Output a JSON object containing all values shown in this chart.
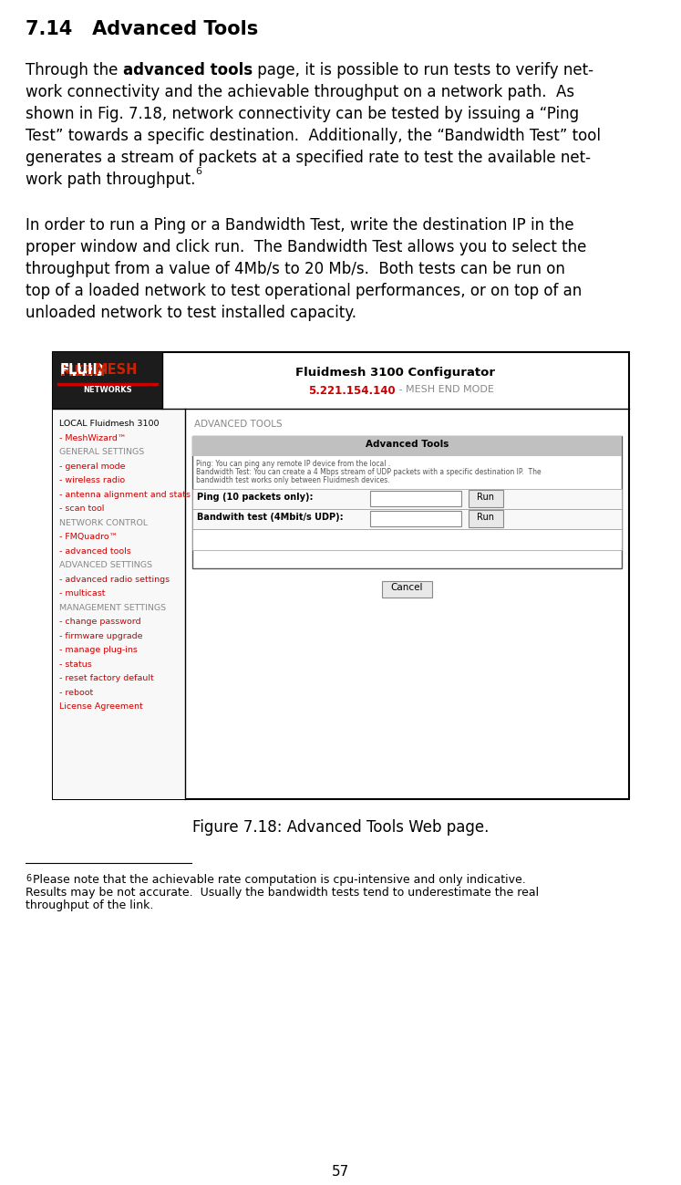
{
  "title": "7.14   Advanced Tools",
  "bg_color": "#ffffff",
  "text_color": "#000000",
  "page_number": "57",
  "para2": "In order to run a Ping or a Bandwidth Test, write the destination IP in the\nproper window and click run.  The Bandwidth Test allows you to select the\nthroughput from a value of 4Mb/s to 20 Mb/s.  Both tests can be run on\ntop of a loaded network to test operational performances, or on top of an\nunloaded network to test installed capacity.",
  "figure_caption": "Figure 7.18: Advanced Tools Web page.",
  "footnote_number": "6",
  "footnote_text": "Please note that the achievable rate computation is cpu-intensive and only indicative.\nResults may be not accurate.  Usually the bandwidth tests tend to underestimate the real\nthroughput of the link.",
  "webpage": {
    "header_title": "Fluidmesh 3100 Configurator",
    "header_ip": "5.221.154.140",
    "header_ip_color": "#cc0000",
    "header_mode": " - MESH END MODE",
    "header_mode_color": "#888888",
    "nav_items": [
      {
        "text": "LOCAL Fluidmesh 3100",
        "color": "#000000"
      },
      {
        "text": "- MeshWizard™",
        "color": "#cc0000"
      },
      {
        "text": "GENERAL SETTINGS",
        "color": "#888888"
      },
      {
        "text": "- general mode",
        "color": "#cc0000"
      },
      {
        "text": "- wireless radio",
        "color": "#cc0000"
      },
      {
        "text": "- antenna alignment and stats",
        "color": "#cc0000"
      },
      {
        "text": "- scan tool",
        "color": "#cc0000"
      },
      {
        "text": "NETWORK CONTROL",
        "color": "#888888"
      },
      {
        "text": "- FMQuadro™",
        "color": "#cc0000"
      },
      {
        "text": "- advanced tools",
        "color": "#cc0000"
      },
      {
        "text": "ADVANCED SETTINGS",
        "color": "#888888"
      },
      {
        "text": "- advanced radio settings",
        "color": "#cc0000"
      },
      {
        "text": "- multicast",
        "color": "#cc0000"
      },
      {
        "text": "MANAGEMENT SETTINGS",
        "color": "#888888"
      },
      {
        "text": "- change password",
        "color": "#cc0000"
      },
      {
        "text": "- firmware upgrade",
        "color": "#cc0000"
      },
      {
        "text": "- manage plug-ins",
        "color": "#cc0000"
      },
      {
        "text": "- status",
        "color": "#cc0000"
      },
      {
        "text": "- reset factory default",
        "color": "#cc0000"
      },
      {
        "text": "- reboot",
        "color": "#cc0000"
      },
      {
        "text": "License Agreement",
        "color": "#cc0000"
      }
    ],
    "content_title": "ADVANCED TOOLS",
    "inner_table_header": "Advanced Tools",
    "desc_line1": "Ping: You can ping any remote IP device from the local .",
    "desc_line2": "Bandwidth Test: You can create a 4 Mbps stream of UDP packets with a specific destination IP.  The",
    "desc_line3": "bandwidth test works only between Fluidmesh devices.",
    "row1_label": "Ping (10 packets only):",
    "row2_label": "Bandwith test (4Mbit/s UDP):",
    "button_text": "Run",
    "cancel_text": "Cancel"
  }
}
